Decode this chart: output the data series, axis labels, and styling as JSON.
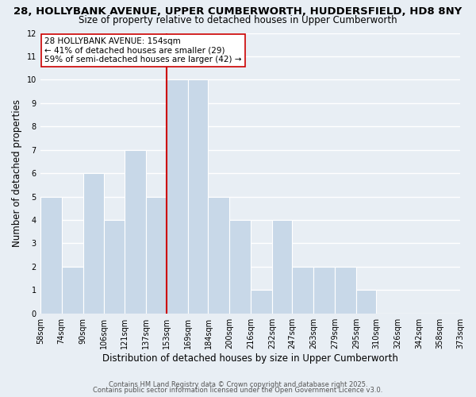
{
  "title_line1": "28, HOLLYBANK AVENUE, UPPER CUMBERWORTH, HUDDERSFIELD, HD8 8NY",
  "title_line2": "Size of property relative to detached houses in Upper Cumberworth",
  "xlabel": "Distribution of detached houses by size in Upper Cumberworth",
  "ylabel": "Number of detached properties",
  "bin_edges": [
    58,
    74,
    90,
    106,
    121,
    137,
    153,
    169,
    184,
    200,
    216,
    232,
    247,
    263,
    279,
    295,
    310,
    326,
    342,
    358,
    373
  ],
  "bin_labels": [
    "58sqm",
    "74sqm",
    "90sqm",
    "106sqm",
    "121sqm",
    "137sqm",
    "153sqm",
    "169sqm",
    "184sqm",
    "200sqm",
    "216sqm",
    "232sqm",
    "247sqm",
    "263sqm",
    "279sqm",
    "295sqm",
    "310sqm",
    "326sqm",
    "342sqm",
    "358sqm",
    "373sqm"
  ],
  "counts": [
    5,
    2,
    6,
    4,
    7,
    5,
    10,
    10,
    5,
    4,
    1,
    4,
    2,
    2,
    2,
    1,
    0,
    0,
    0,
    0
  ],
  "bar_color": "#c8d8e8",
  "bar_edge_color": "#ffffff",
  "property_line_x": 153,
  "property_line_color": "#cc0000",
  "annotation_line1": "28 HOLLYBANK AVENUE: 154sqm",
  "annotation_line2": "← 41% of detached houses are smaller (29)",
  "annotation_line3": "59% of semi-detached houses are larger (42) →",
  "annotation_box_color": "#ffffff",
  "annotation_box_edge_color": "#cc0000",
  "ylim": [
    0,
    12
  ],
  "yticks": [
    0,
    1,
    2,
    3,
    4,
    5,
    6,
    7,
    8,
    9,
    10,
    11,
    12
  ],
  "background_color": "#e8eef4",
  "plot_bg_color": "#e8eef4",
  "grid_color": "#ffffff",
  "footer_line1": "Contains HM Land Registry data © Crown copyright and database right 2025.",
  "footer_line2": "Contains public sector information licensed under the Open Government Licence v3.0.",
  "title_fontsize": 9.5,
  "subtitle_fontsize": 8.5,
  "xlabel_fontsize": 8.5,
  "ylabel_fontsize": 8.5,
  "tick_fontsize": 7,
  "annot_fontsize": 7.5,
  "footer_fontsize": 6.0
}
